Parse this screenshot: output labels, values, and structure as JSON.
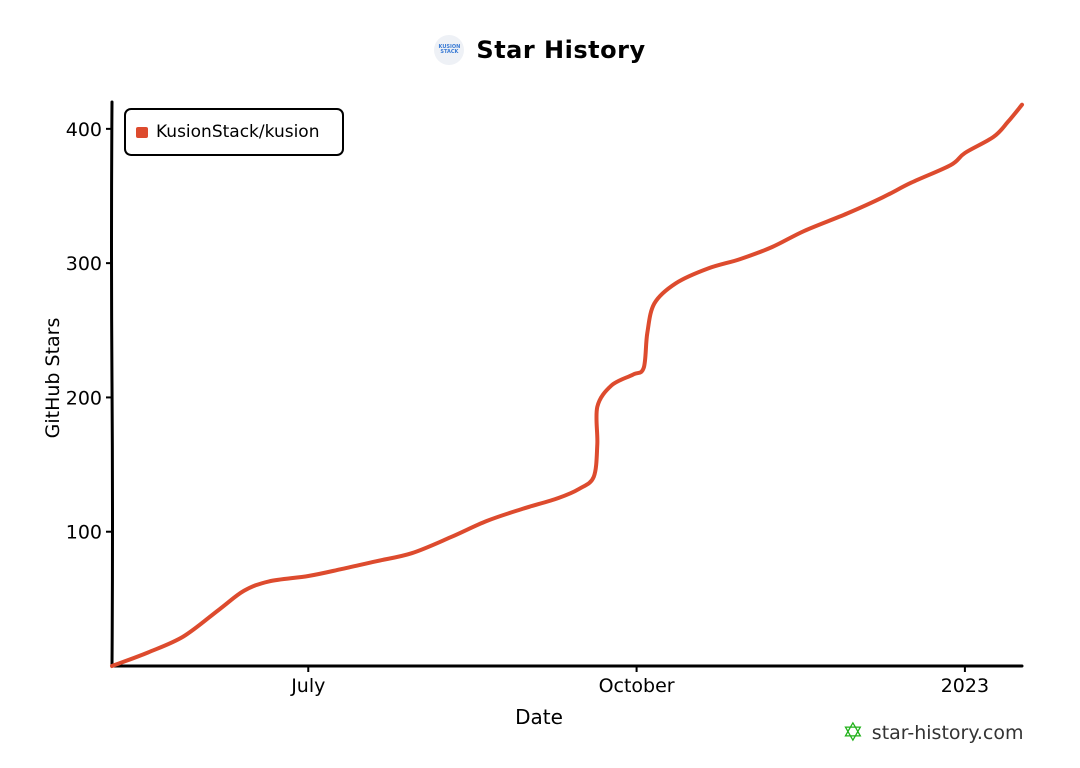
{
  "header": {
    "title": "Star History",
    "logo_text": [
      "KUSION",
      "STACK"
    ]
  },
  "watermark": {
    "text": "star-history.com",
    "icon": "star-outline-icon",
    "color": "#21b11a"
  },
  "chart_data": {
    "type": "line",
    "title": "Star History",
    "xlabel": "Date",
    "ylabel": "GitHub Stars",
    "x_ticks": [
      {
        "label": "July",
        "value": "2022-07-01"
      },
      {
        "label": "October",
        "value": "2022-10-01"
      },
      {
        "label": "2023",
        "value": "2023-01-01"
      }
    ],
    "y_ticks": [
      100,
      200,
      300,
      400
    ],
    "xlim": [
      "2022-05-07",
      "2023-01-17"
    ],
    "ylim": [
      0,
      420
    ],
    "grid": false,
    "legend_position": "top-left",
    "series": [
      {
        "name": "KusionStack/kusion",
        "color": "#dd4b2e",
        "points": [
          [
            "2022-05-07",
            0
          ],
          [
            "2022-05-17",
            10
          ],
          [
            "2022-05-27",
            22
          ],
          [
            "2022-06-06",
            42
          ],
          [
            "2022-06-13",
            56
          ],
          [
            "2022-06-20",
            63
          ],
          [
            "2022-07-01",
            67
          ],
          [
            "2022-07-10",
            72
          ],
          [
            "2022-07-20",
            78
          ],
          [
            "2022-07-30",
            84
          ],
          [
            "2022-08-10",
            96
          ],
          [
            "2022-08-20",
            108
          ],
          [
            "2022-08-30",
            117
          ],
          [
            "2022-09-09",
            125
          ],
          [
            "2022-09-15",
            132
          ],
          [
            "2022-09-19",
            141
          ],
          [
            "2022-09-20",
            165
          ],
          [
            "2022-09-20",
            193
          ],
          [
            "2022-09-24",
            209
          ],
          [
            "2022-09-30",
            217
          ],
          [
            "2022-10-03",
            222
          ],
          [
            "2022-10-04",
            248
          ],
          [
            "2022-10-06",
            270
          ],
          [
            "2022-10-12",
            285
          ],
          [
            "2022-10-21",
            296
          ],
          [
            "2022-10-30",
            303
          ],
          [
            "2022-11-08",
            312
          ],
          [
            "2022-11-17",
            324
          ],
          [
            "2022-11-29",
            337
          ],
          [
            "2022-12-09",
            349
          ],
          [
            "2022-12-17",
            360
          ],
          [
            "2022-12-28",
            373
          ],
          [
            "2023-01-01",
            382
          ],
          [
            "2023-01-09",
            394
          ],
          [
            "2023-01-13",
            405
          ],
          [
            "2023-01-17",
            418
          ]
        ]
      }
    ]
  }
}
